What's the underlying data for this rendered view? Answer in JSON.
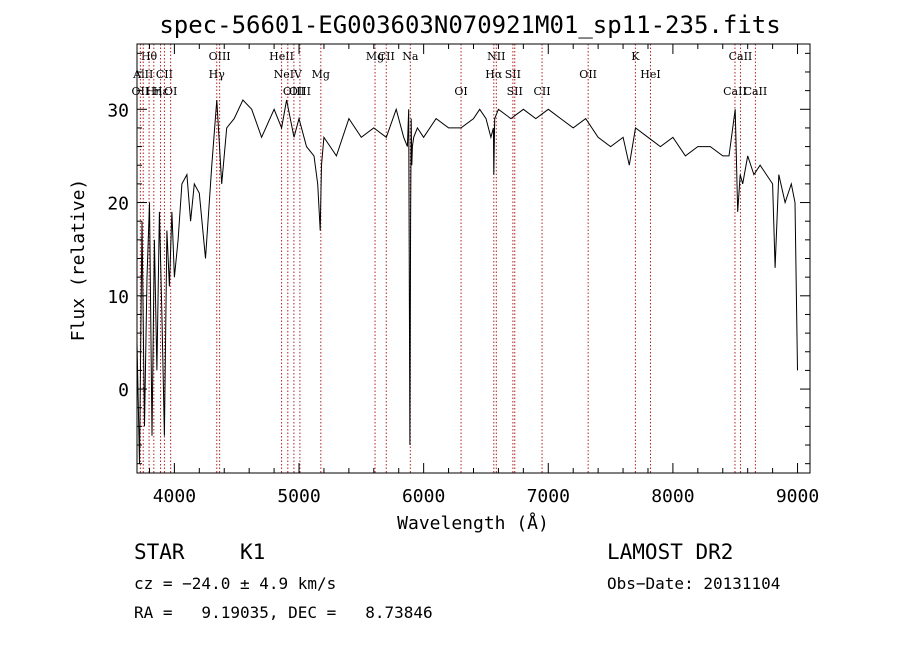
{
  "chart_data": {
    "type": "line",
    "title": "spec-56601-EG003603N070921M01_sp11-235.fits",
    "xlabel": "Wavelength (Å)",
    "ylabel": "Flux (relative)",
    "xlim": [
      3700,
      9100
    ],
    "ylim": [
      -9,
      37
    ],
    "xticks": [
      4000,
      5000,
      6000,
      7000,
      8000,
      9000
    ],
    "yticks": [
      0,
      10,
      20,
      30
    ],
    "grid": false,
    "line_color": "#000000",
    "marker_color": "#b22222",
    "series": [
      {
        "x": [
          3700,
          3720,
          3740,
          3760,
          3780,
          3800,
          3820,
          3840,
          3860,
          3880,
          3900,
          3920,
          3940,
          3960,
          3980,
          4000,
          4030,
          4060,
          4100,
          4130,
          4160,
          4200,
          4250,
          4300,
          4340,
          4380,
          4420,
          4480,
          4550,
          4620,
          4700,
          4800,
          4860,
          4900,
          4960,
          5000,
          5060,
          5120,
          5150,
          5170,
          5180,
          5200,
          5250,
          5300,
          5400,
          5500,
          5600,
          5700,
          5780,
          5840,
          5870,
          5880,
          5890,
          5895,
          5900,
          5905,
          5910,
          5920,
          5950,
          6000,
          6100,
          6200,
          6300,
          6400,
          6450,
          6500,
          6540,
          6560,
          6563,
          6570,
          6600,
          6700,
          6800,
          6900,
          7000,
          7100,
          7200,
          7300,
          7400,
          7500,
          7600,
          7650,
          7700,
          7800,
          7900,
          8000,
          8100,
          8200,
          8300,
          8400,
          8450,
          8500,
          8520,
          8540,
          8560,
          8600,
          8650,
          8700,
          8750,
          8800,
          8820,
          8850,
          8900,
          8950,
          8980,
          9000
        ],
        "y": [
          5,
          -8,
          18,
          -4,
          12,
          20,
          -5,
          16,
          2,
          19,
          8,
          -5,
          17,
          11,
          19,
          12,
          16,
          22,
          23,
          18,
          22,
          21,
          14,
          24,
          31,
          22,
          28,
          29,
          31,
          30,
          27,
          30,
          28,
          31,
          27,
          29,
          26,
          25,
          22,
          17,
          24,
          27,
          26,
          25,
          29,
          27,
          28,
          27,
          30,
          27,
          26,
          30,
          -6,
          18,
          29,
          24,
          26,
          27,
          28,
          27,
          29,
          28,
          28,
          29,
          30,
          29,
          27,
          28,
          23,
          29,
          30,
          29,
          30,
          29,
          30,
          29,
          28,
          29,
          27,
          26,
          27,
          24,
          28,
          27,
          26,
          27,
          25,
          26,
          26,
          25,
          25,
          30,
          19,
          23,
          22,
          25,
          23,
          24,
          23,
          22,
          13,
          23,
          20,
          22,
          20,
          2
        ]
      }
    ],
    "line_markers": [
      {
        "label": "Hθ",
        "x": 3797,
        "row": 1
      },
      {
        "label": "AlII",
        "x": 3750,
        "row": 2
      },
      {
        "label": "OII",
        "x": 3727,
        "row": 3
      },
      {
        "label": "Hη",
        "x": 3835,
        "row": 3
      },
      {
        "label": "Hε",
        "x": 3889,
        "row": 3
      },
      {
        "label": "CII",
        "x": 3920,
        "row": 2
      },
      {
        "label": "OI",
        "x": 3970,
        "row": 3
      },
      {
        "label": "OIII",
        "x": 4363,
        "row": 1
      },
      {
        "label": "Hγ",
        "x": 4340,
        "row": 2
      },
      {
        "label": "HeII",
        "x": 4860,
        "row": 1
      },
      {
        "label": "NeIV",
        "x": 4910,
        "row": 2
      },
      {
        "label": "OIII",
        "x": 4959,
        "row": 3
      },
      {
        "label": "OIII",
        "x": 5007,
        "row": 3
      },
      {
        "label": "Mg",
        "x": 5175,
        "row": 2
      },
      {
        "label": "Mg",
        "x": 5610,
        "row": 1
      },
      {
        "label": "CII",
        "x": 5700,
        "row": 1
      },
      {
        "label": "Na",
        "x": 5893,
        "row": 1
      },
      {
        "label": "OI",
        "x": 6300,
        "row": 3
      },
      {
        "label": "NII",
        "x": 6583,
        "row": 1
      },
      {
        "label": "Hα",
        "x": 6563,
        "row": 2
      },
      {
        "label": "SII",
        "x": 6716,
        "row": 2
      },
      {
        "label": "SII",
        "x": 6731,
        "row": 3
      },
      {
        "label": "CII",
        "x": 6950,
        "row": 3
      },
      {
        "label": "OII",
        "x": 7320,
        "row": 2
      },
      {
        "label": "K",
        "x": 7699,
        "row": 1
      },
      {
        "label": "HeI",
        "x": 7820,
        "row": 2
      },
      {
        "label": "CaII",
        "x": 8542,
        "row": 1
      },
      {
        "label": "CaII",
        "x": 8498,
        "row": 3
      },
      {
        "label": "CaII",
        "x": 8662,
        "row": 3
      }
    ]
  },
  "info": {
    "object_class": "STAR",
    "subclass": "K1",
    "survey": "LAMOST DR2",
    "cz": "cz = −24.0 ± 4.9 km/s",
    "obs_date": "Obs−Date: 20131104",
    "coords": "RA =   9.19035, DEC =   8.73846"
  }
}
